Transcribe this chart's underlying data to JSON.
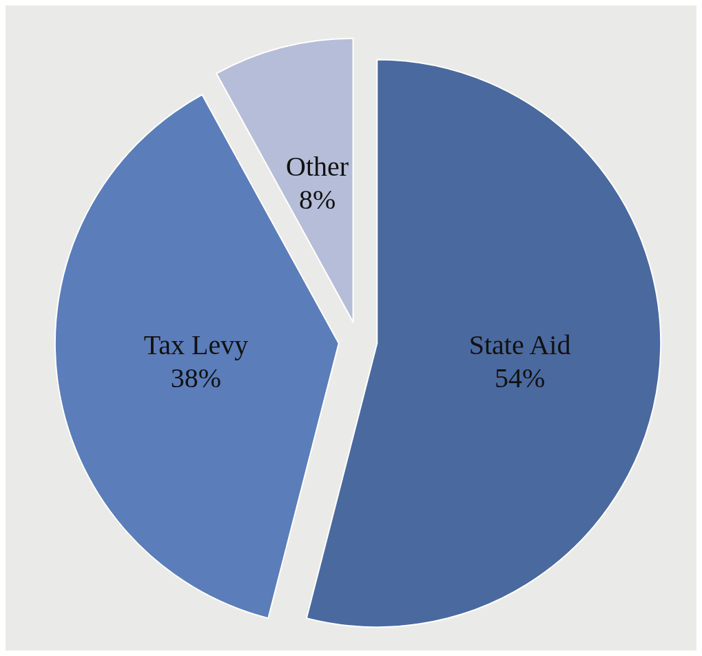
{
  "chart_data": {
    "type": "pie",
    "categories": [
      "State Aid",
      "Tax Levy",
      "Other"
    ],
    "values": [
      54,
      38,
      8
    ],
    "value_labels": [
      "54%",
      "38%",
      "8%"
    ],
    "colors": [
      "#4a699f",
      "#5b7dba",
      "#b5bdd8"
    ],
    "legend": false
  }
}
